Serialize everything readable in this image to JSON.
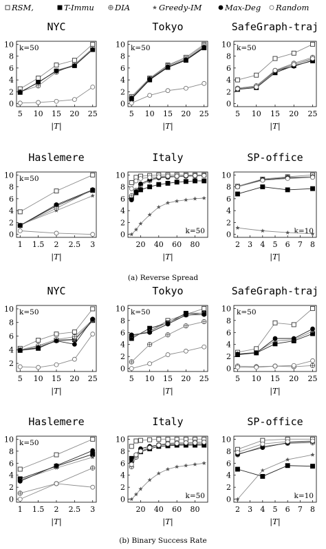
{
  "legend": [
    {
      "name": "RSM,",
      "marker": "square-open"
    },
    {
      "name": "T-Immu",
      "marker": "square-filled"
    },
    {
      "name": "DIA",
      "marker": "circle-plus"
    },
    {
      "name": "Greedy-IM",
      "marker": "star"
    },
    {
      "name": "Max-Deg",
      "marker": "circle-filled"
    },
    {
      "name": "Random",
      "marker": "circle-open"
    }
  ],
  "captions": {
    "a": "(a) Reverse Spread",
    "b": "(b) Binary Success Rate"
  },
  "xlabel": "|T|",
  "colors": {
    "axis": "#000000",
    "gray": "#8a8a8a",
    "dark": "#222222"
  },
  "chart_data": [
    {
      "type": "line",
      "title": "NYC",
      "annotation": "k=50",
      "x": [
        5,
        10,
        15,
        20,
        25
      ],
      "xticks": [
        5,
        10,
        15,
        20,
        25
      ],
      "yticks": [
        0,
        2,
        4,
        6,
        8,
        10
      ],
      "ylim": [
        -0.5,
        10.5
      ],
      "series": [
        {
          "name": "RSM,",
          "values": [
            2.5,
            4.3,
            6.5,
            7.3,
            10
          ]
        },
        {
          "name": "T-Immu",
          "values": [
            1.9,
            3.6,
            5.5,
            6.4,
            9.1
          ]
        },
        {
          "name": "DIA",
          "values": [
            2.0,
            3.0,
            5.3,
            6.6,
            9.3
          ]
        },
        {
          "name": "Greedy-IM",
          "values": [
            2.0,
            3.5,
            5.6,
            6.5,
            9.2
          ]
        },
        {
          "name": "Max-Deg",
          "values": [
            1.9,
            3.6,
            5.5,
            6.4,
            9.1
          ]
        },
        {
          "name": "Random",
          "values": [
            0.1,
            0.2,
            0.4,
            0.7,
            2.8
          ]
        }
      ]
    },
    {
      "type": "line",
      "title": "Tokyo",
      "annotation": "k=50",
      "x": [
        5,
        10,
        15,
        20,
        25
      ],
      "xticks": [
        5,
        10,
        15,
        20,
        25
      ],
      "yticks": [
        0,
        2,
        4,
        6,
        8,
        10
      ],
      "ylim": [
        -0.5,
        10.5
      ],
      "series": [
        {
          "name": "RSM,",
          "values": [
            1.2,
            4.3,
            6.5,
            7.8,
            10
          ]
        },
        {
          "name": "T-Immu",
          "values": [
            0.8,
            4.0,
            6.1,
            7.3,
            9.4
          ]
        },
        {
          "name": "DIA",
          "values": [
            1.0,
            4.2,
            6.4,
            7.6,
            9.8
          ]
        },
        {
          "name": "Greedy-IM",
          "values": [
            0.9,
            4.1,
            6.2,
            7.4,
            9.6
          ]
        },
        {
          "name": "Max-Deg",
          "values": [
            0.9,
            4.1,
            6.2,
            7.4,
            9.5
          ]
        },
        {
          "name": "Random",
          "values": [
            0.1,
            1.4,
            2.2,
            2.6,
            3.4
          ]
        }
      ]
    },
    {
      "type": "line",
      "title": "SafeGraph-traj",
      "annotation": "k=50",
      "x": [
        5,
        10,
        15,
        20,
        25
      ],
      "xticks": [
        5,
        10,
        15,
        20,
        25
      ],
      "yticks": [
        0,
        2,
        4,
        6,
        8,
        10
      ],
      "ylim": [
        -0.5,
        10.5
      ],
      "series": [
        {
          "name": "RSM,",
          "values": [
            4.0,
            4.8,
            7.6,
            8.5,
            10
          ]
        },
        {
          "name": "T-Immu",
          "values": [
            2.4,
            2.7,
            5.2,
            6.4,
            7.2
          ]
        },
        {
          "name": "DIA",
          "values": [
            2.6,
            3.0,
            5.6,
            6.8,
            7.8
          ]
        },
        {
          "name": "Greedy-IM",
          "values": [
            2.5,
            2.9,
            5.4,
            6.6,
            7.5
          ]
        },
        {
          "name": "Max-Deg",
          "values": [
            2.5,
            2.8,
            5.5,
            6.3,
            7.3
          ]
        },
        {
          "name": "Random",
          "values": [
            2.5,
            2.8,
            5.6,
            6.6,
            7.6
          ]
        }
      ]
    },
    {
      "type": "line",
      "title": "Haslemere",
      "annotation": "k=50",
      "x": [
        1,
        2,
        3
      ],
      "xticks": [
        1,
        1.5,
        2,
        2.5,
        3
      ],
      "xticklabels": [
        "1",
        "1.5",
        "2",
        "2.5",
        "3"
      ],
      "yticks": [
        0,
        2,
        4,
        6,
        8,
        10
      ],
      "ylim": [
        -0.5,
        10.5
      ],
      "series": [
        {
          "name": "RSM,",
          "values": [
            3.8,
            7.3,
            10
          ]
        },
        {
          "name": "T-Immu",
          "values": [
            1.5,
            4.8,
            7.4
          ]
        },
        {
          "name": "DIA",
          "values": [
            1.5,
            4.4,
            7.5
          ]
        },
        {
          "name": "Greedy-IM",
          "values": [
            1.6,
            4.0,
            6.5
          ]
        },
        {
          "name": "Max-Deg",
          "values": [
            1.5,
            5.0,
            7.5
          ]
        },
        {
          "name": "Random",
          "values": [
            0.6,
            0.2,
            0.0
          ]
        }
      ]
    },
    {
      "type": "line",
      "title": "Italy",
      "annotation": "k=50",
      "annotation_pos": "bottom-right",
      "x": [
        10,
        15,
        20,
        30,
        40,
        50,
        60,
        70,
        80,
        90
      ],
      "xticks": [
        20,
        40,
        60,
        80
      ],
      "yticks": [
        0,
        2,
        4,
        6,
        8,
        10
      ],
      "ylim": [
        -0.5,
        10.5
      ],
      "series": [
        {
          "name": "RSM,",
          "values": [
            8.7,
            9.6,
            9.8,
            9.9,
            10,
            10,
            10,
            10,
            10,
            10
          ]
        },
        {
          "name": "T-Immu",
          "values": [
            6.2,
            7.0,
            7.5,
            8.0,
            8.4,
            8.6,
            8.8,
            8.9,
            9.0,
            9.0
          ]
        },
        {
          "name": "DIA",
          "values": [
            6.5,
            7.4,
            8.3,
            9.0,
            9.5,
            9.6,
            9.7,
            9.8,
            9.8,
            9.9
          ]
        },
        {
          "name": "Greedy-IM",
          "values": [
            0.0,
            0.8,
            1.8,
            3.3,
            4.6,
            5.3,
            5.6,
            5.8,
            6.0,
            6.1
          ]
        },
        {
          "name": "Max-Deg",
          "values": [
            5.8,
            7.2,
            8.5,
            9.2,
            9.6,
            9.7,
            9.8,
            9.8,
            9.9,
            9.9
          ]
        },
        {
          "name": "Random",
          "values": [
            7.7,
            9.0,
            9.4,
            9.6,
            9.7,
            9.8,
            9.8,
            9.9,
            9.9,
            9.9
          ]
        }
      ]
    },
    {
      "type": "line",
      "title": "SP-office",
      "annotation": "k=10",
      "annotation_pos": "bottom-right",
      "x": [
        2,
        4,
        6,
        8
      ],
      "xticks": [
        2,
        3,
        4,
        5,
        6,
        7,
        8
      ],
      "yticks": [
        0,
        2,
        4,
        6,
        8,
        10
      ],
      "ylim": [
        -0.5,
        10.5
      ],
      "series": [
        {
          "name": "RSM,",
          "values": [
            8.1,
            9.3,
            9.7,
            10
          ]
        },
        {
          "name": "T-Immu",
          "values": [
            6.8,
            8.0,
            7.5,
            7.7
          ]
        },
        {
          "name": "DIA",
          "values": [
            8.0,
            9.2,
            9.6,
            9.7
          ]
        },
        {
          "name": "Greedy-IM",
          "values": [
            1.1,
            0.6,
            0.3,
            0.1
          ]
        },
        {
          "name": "Max-Deg",
          "values": [
            8.0,
            9.2,
            9.5,
            9.6
          ]
        },
        {
          "name": "Random",
          "values": [
            8.0,
            9.1,
            9.4,
            9.6
          ]
        }
      ]
    },
    {
      "type": "line",
      "title": "NYC",
      "annotation": "k=50",
      "x": [
        5,
        10,
        15,
        20,
        25
      ],
      "xticks": [
        5,
        10,
        15,
        20,
        25
      ],
      "yticks": [
        2,
        4,
        6,
        8,
        10
      ],
      "ylim": [
        0.8,
        10.5
      ],
      "series": [
        {
          "name": "RSM,",
          "values": [
            4.2,
            5.4,
            6.3,
            6.6,
            10
          ]
        },
        {
          "name": "T-Immu",
          "values": [
            3.9,
            4.2,
            5.4,
            5.5,
            8.3
          ]
        },
        {
          "name": "DIA",
          "values": [
            4.0,
            4.6,
            5.5,
            5.9,
            8.4
          ]
        },
        {
          "name": "Greedy-IM",
          "values": [
            3.9,
            4.5,
            5.3,
            5.4,
            8.2
          ]
        },
        {
          "name": "Max-Deg",
          "values": [
            3.9,
            4.3,
            5.3,
            4.8,
            8.5
          ]
        },
        {
          "name": "Random",
          "values": [
            1.5,
            1.4,
            1.8,
            2.6,
            6.3
          ]
        }
      ]
    },
    {
      "type": "line",
      "title": "Tokyo",
      "annotation": "k=50",
      "x": [
        5,
        10,
        15,
        20,
        25
      ],
      "xticks": [
        5,
        10,
        15,
        20,
        25
      ],
      "yticks": [
        0,
        2,
        4,
        6,
        8,
        10
      ],
      "ylim": [
        -0.5,
        10.5
      ],
      "series": [
        {
          "name": "RSM,",
          "values": [
            5.4,
            6.2,
            8.0,
            9.0,
            10
          ]
        },
        {
          "name": "T-Immu",
          "values": [
            5.0,
            6.7,
            7.6,
            9.2,
            9.2
          ]
        },
        {
          "name": "DIA",
          "values": [
            1.1,
            4.0,
            5.6,
            7.1,
            7.8
          ]
        },
        {
          "name": "Greedy-IM",
          "values": [
            5.4,
            6.2,
            7.7,
            8.8,
            9.3
          ]
        },
        {
          "name": "Max-Deg",
          "values": [
            5.6,
            6.0,
            7.4,
            8.9,
            9.0
          ]
        },
        {
          "name": "Random",
          "values": [
            0.0,
            0.8,
            2.3,
            2.9,
            3.6
          ]
        }
      ]
    },
    {
      "type": "line",
      "title": "SafeGraph-traj",
      "annotation": "k=50",
      "x": [
        5,
        10,
        15,
        20,
        25
      ],
      "xticks": [
        5,
        10,
        15,
        20,
        25
      ],
      "yticks": [
        0,
        2,
        4,
        6,
        8,
        10
      ],
      "ylim": [
        -0.5,
        10.5
      ],
      "series": [
        {
          "name": "RSM,",
          "values": [
            2.7,
            3.3,
            7.6,
            7.3,
            10
          ]
        },
        {
          "name": "T-Immu",
          "values": [
            2.3,
            2.6,
            4.1,
            4.6,
            5.8
          ]
        },
        {
          "name": "DIA",
          "values": [
            0.4,
            0.3,
            0.4,
            0.3,
            0.5
          ]
        },
        {
          "name": "Greedy-IM",
          "values": [
            2.4,
            2.7,
            4.6,
            4.8,
            6.2
          ]
        },
        {
          "name": "Max-Deg",
          "values": [
            2.4,
            2.6,
            5.0,
            5.0,
            6.6
          ]
        },
        {
          "name": "Random",
          "values": [
            0.2,
            0.2,
            0.4,
            0.5,
            1.3
          ]
        }
      ]
    },
    {
      "type": "line",
      "title": "Haslemere",
      "annotation": "k=50",
      "x": [
        1,
        2,
        3
      ],
      "xticks": [
        1,
        1.5,
        2,
        2.5,
        3
      ],
      "xticklabels": [
        "1",
        "1.5",
        "2",
        "2.5",
        "3"
      ],
      "yticks": [
        0,
        2,
        4,
        6,
        8,
        10
      ],
      "ylim": [
        -0.5,
        10.5
      ],
      "series": [
        {
          "name": "RSM,",
          "values": [
            5.0,
            7.4,
            10
          ]
        },
        {
          "name": "T-Immu",
          "values": [
            3.4,
            5.5,
            7.5
          ]
        },
        {
          "name": "DIA",
          "values": [
            1.0,
            2.6,
            5.2
          ]
        },
        {
          "name": "Greedy-IM",
          "values": [
            3.2,
            5.2,
            7.0
          ]
        },
        {
          "name": "Max-Deg",
          "values": [
            3.0,
            5.6,
            8.1
          ]
        },
        {
          "name": "Random",
          "values": [
            0.0,
            2.6,
            2.0
          ]
        }
      ]
    },
    {
      "type": "line",
      "title": "Italy",
      "annotation": "k=50",
      "annotation_pos": "bottom-right",
      "x": [
        10,
        15,
        20,
        30,
        40,
        50,
        60,
        70,
        80,
        90
      ],
      "xticks": [
        20,
        40,
        60,
        80
      ],
      "yticks": [
        0,
        2,
        4,
        6,
        8,
        10
      ],
      "ylim": [
        -0.5,
        10.5
      ],
      "series": [
        {
          "name": "RSM,",
          "values": [
            8.8,
            9.7,
            9.8,
            9.9,
            10,
            10,
            10,
            10,
            10,
            10
          ]
        },
        {
          "name": "T-Immu",
          "values": [
            6.8,
            7.2,
            7.9,
            8.4,
            8.8,
            8.9,
            9.0,
            9.0,
            9.0,
            9.0
          ]
        },
        {
          "name": "DIA",
          "values": [
            5.4,
            7.0,
            8.0,
            8.7,
            9.1,
            9.3,
            9.4,
            9.4,
            9.5,
            9.5
          ]
        },
        {
          "name": "Greedy-IM",
          "values": [
            0.0,
            0.8,
            1.7,
            3.2,
            4.3,
            5.0,
            5.4,
            5.6,
            5.8,
            6.0
          ]
        },
        {
          "name": "Max-Deg",
          "values": [
            6.2,
            7.4,
            8.4,
            8.8,
            9.0,
            9.1,
            9.1,
            9.2,
            9.2,
            9.2
          ]
        },
        {
          "name": "Random",
          "values": [
            5.8,
            7.4,
            8.0,
            8.6,
            9.0,
            9.2,
            9.3,
            9.4,
            9.4,
            9.5
          ]
        }
      ]
    },
    {
      "type": "line",
      "title": "SP-office",
      "annotation": "k=10",
      "annotation_pos": "bottom-right",
      "x": [
        2,
        4,
        6,
        8
      ],
      "xticks": [
        2,
        3,
        4,
        5,
        6,
        7,
        8
      ],
      "yticks": [
        0,
        2,
        4,
        6,
        8,
        10
      ],
      "ylim": [
        -0.5,
        10.5
      ],
      "series": [
        {
          "name": "RSM,",
          "values": [
            8.3,
            9.8,
            10,
            10
          ]
        },
        {
          "name": "T-Immu",
          "values": [
            5.0,
            3.8,
            5.6,
            5.5
          ]
        },
        {
          "name": "DIA",
          "values": [
            7.4,
            8.8,
            9.3,
            9.4
          ]
        },
        {
          "name": "Greedy-IM",
          "values": [
            0.0,
            4.8,
            6.6,
            7.4
          ]
        },
        {
          "name": "Max-Deg",
          "values": [
            7.5,
            8.6,
            9.4,
            9.6
          ]
        },
        {
          "name": "Random",
          "values": [
            7.8,
            9.2,
            9.6,
            9.7
          ]
        }
      ]
    }
  ]
}
